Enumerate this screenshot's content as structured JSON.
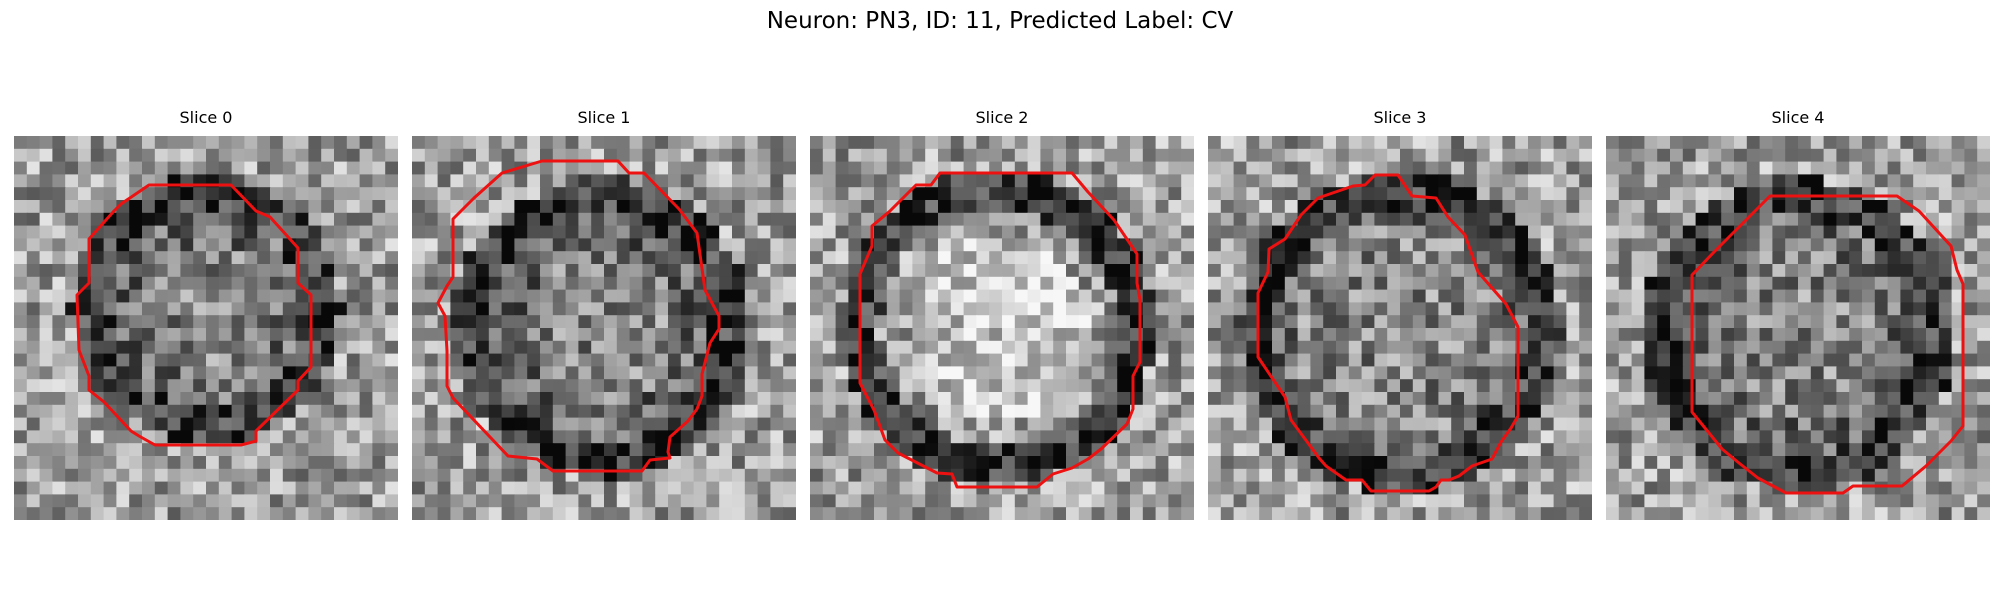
{
  "figure": {
    "title": "Neuron: PN3, ID: 11, Predicted Label: CV"
  },
  "contour_color": "#ee1111",
  "panels": [
    {
      "title": "Slice 0"
    },
    {
      "title": "Slice 1"
    },
    {
      "title": "Slice 2"
    },
    {
      "title": "Slice 3"
    },
    {
      "title": "Slice 4"
    }
  ]
}
